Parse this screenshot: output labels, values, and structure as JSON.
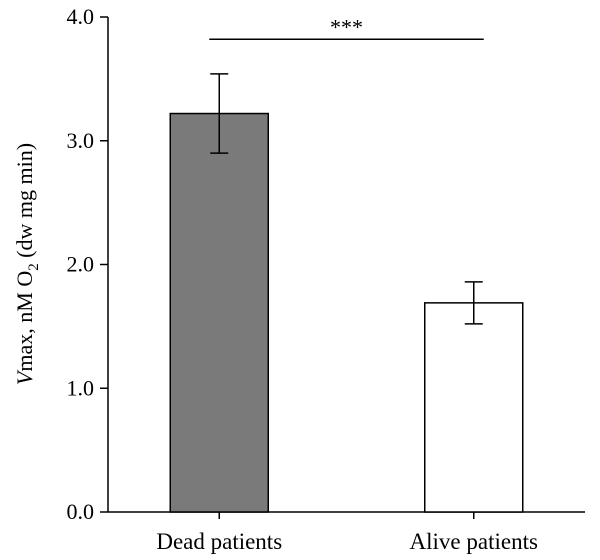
{
  "chart_data": {
    "type": "bar",
    "categories": [
      "Dead patients",
      "Alive patients"
    ],
    "values": [
      3.22,
      1.69
    ],
    "error_bars": [
      0.32,
      0.17
    ],
    "bar_colors": [
      "#7a7a7a",
      "#ffffff"
    ],
    "ylim": [
      0,
      4
    ],
    "yticks": [
      "0.0",
      "1.0",
      "2.0",
      "3.0",
      "4.0"
    ],
    "ylabel": {
      "italic_prefix": "V",
      "main": "max, nM O",
      "subscript": "2",
      "suffix": " (dw mg min)"
    },
    "significance": {
      "label": "***",
      "from_category": 0,
      "to_category": 1,
      "y": 3.82
    },
    "grid": false,
    "legend": "none"
  }
}
